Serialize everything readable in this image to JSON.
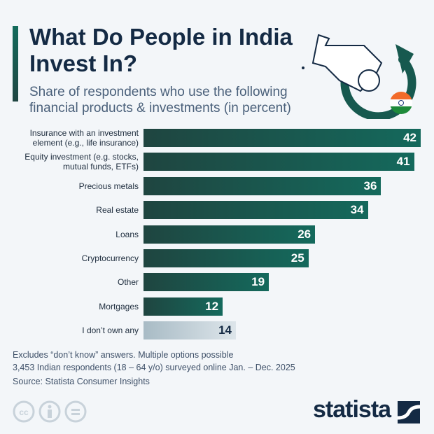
{
  "header": {
    "title": "What Do People in India Invest In?",
    "subtitle": "Share of respondents who use the following financial products & investments (in percent)"
  },
  "chart_data": {
    "type": "bar",
    "orientation": "horizontal",
    "title": "What Do People in India Invest In?",
    "subtitle": "Share of respondents who use the following financial products & investments (in percent)",
    "categories": [
      "Insurance with an investment element (e.g., life insurance)",
      "Equity investment (e.g. stocks, mutual funds, ETFs)",
      "Precious metals",
      "Real estate",
      "Loans",
      "Cryptocurrency",
      "Other",
      "Mortgages",
      "I don’t own any"
    ],
    "values": [
      42,
      41,
      36,
      34,
      26,
      25,
      19,
      12,
      14
    ],
    "xlim": [
      0,
      42
    ],
    "grid": false,
    "colors": {
      "bar": "#14695c",
      "bar_dark": "#1f4540",
      "highlight_none": "#a8bbc5"
    }
  },
  "footer": {
    "note1": "Excludes “don’t know” answers. Multiple options possible",
    "note2": "3,453 Indian respondents (18 – 64 y/o) surveyed online Jan. – Dec. 2025",
    "source": "Source: Statista Consumer Insights",
    "logo": "statista",
    "license_icons": [
      "cc-icon",
      "by-icon",
      "nd-icon"
    ]
  }
}
